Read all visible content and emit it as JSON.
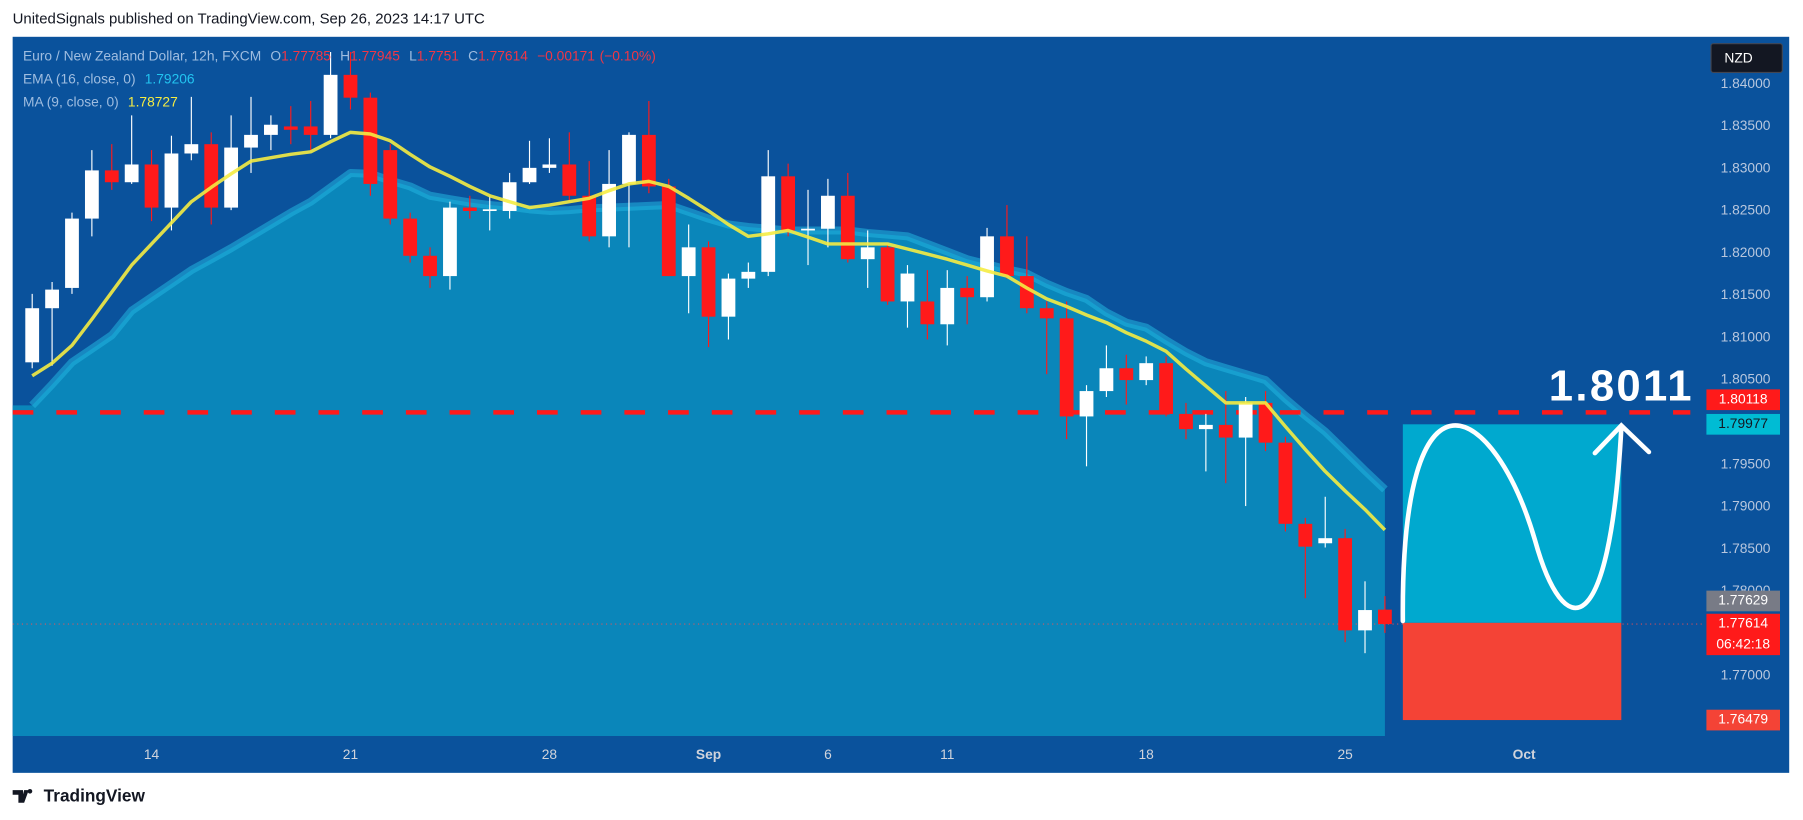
{
  "header": "UnitedSignals published on TradingView.com, Sep 26, 2023 14:17 UTC",
  "footer": "TradingView",
  "chart_data": {
    "type": "candlestick",
    "title": "Euro / New Zealand Dollar, 12h, FXCM",
    "currency": "NZD",
    "ohlc_labels": [
      "O",
      "H",
      "L",
      "C"
    ],
    "change": {
      "value": -0.00171,
      "label": "−0.00171"
    },
    "change_percent": {
      "value": -0.1,
      "label": "(−0.10%)"
    },
    "up_color": "#ffffff",
    "down_color": "#ff1a1a",
    "categories": [
      null,
      null,
      null,
      null,
      null,
      null,
      "14",
      null,
      null,
      null,
      null,
      null,
      null,
      null,
      null,
      null,
      "21",
      null,
      null,
      null,
      null,
      null,
      null,
      null,
      null,
      null,
      "28",
      null,
      null,
      null,
      null,
      null,
      null,
      null,
      "Sep",
      null,
      null,
      null,
      null,
      null,
      "6",
      null,
      null,
      null,
      null,
      null,
      "11",
      null,
      null,
      null,
      null,
      null,
      null,
      null,
      null,
      null,
      "18",
      null,
      null,
      null,
      null,
      null,
      null,
      null,
      null,
      null,
      "25",
      null,
      null,
      null,
      null,
      null,
      null,
      null,
      null,
      "Oct"
    ],
    "open": [
      1.8071,
      1.8135,
      1.8159,
      1.8241,
      1.8298,
      1.8284,
      1.8305,
      1.8254,
      1.8318,
      1.8329,
      1.8254,
      1.8325,
      1.834,
      1.835,
      1.835,
      1.834,
      1.8411,
      1.8384,
      1.8322,
      1.8241,
      1.8197,
      1.8173,
      1.8254,
      1.825,
      1.825,
      1.8284,
      1.8301,
      1.8305,
      1.8268,
      1.822,
      1.8282,
      1.834,
      1.8279,
      1.8173,
      1.8207,
      1.8125,
      1.817,
      1.8178,
      1.8291,
      1.8227,
      1.8229,
      1.8268,
      1.8193,
      1.8207,
      1.8143,
      1.8143,
      1.8116,
      1.8159,
      1.8148,
      1.822,
      1.8173,
      1.8135,
      1.8123,
      1.8007,
      1.8037,
      1.8064,
      1.805,
      1.807,
      1.801,
      1.7992,
      1.7997,
      1.7982,
      1.8023,
      1.7976,
      1.788,
      1.7857,
      1.7863,
      1.7754,
      1.77785,
      null,
      null,
      null,
      null,
      null,
      null,
      null
    ],
    "high": [
      1.8152,
      1.8166,
      1.8248,
      1.8322,
      1.8329,
      1.8363,
      1.8322,
      1.8339,
      1.8385,
      1.8343,
      1.8363,
      1.8385,
      1.8363,
      1.8374,
      1.838,
      1.8438,
      1.8438,
      1.839,
      1.8329,
      1.8248,
      1.8207,
      1.8261,
      1.8268,
      1.8268,
      1.8295,
      1.8333,
      1.8336,
      1.8343,
      1.8309,
      1.8322,
      1.8343,
      1.838,
      1.8288,
      1.8234,
      1.8214,
      1.8176,
      1.8189,
      1.8322,
      1.8306,
      1.8275,
      1.8288,
      1.8295,
      1.8227,
      1.8211,
      1.8186,
      1.818,
      1.818,
      1.8173,
      1.823,
      1.8257,
      1.822,
      1.8143,
      1.8143,
      1.8044,
      1.8091,
      1.808,
      1.8078,
      1.8078,
      1.8023,
      1.801,
      1.8037,
      1.803,
      1.8037,
      1.7983,
      1.7887,
      1.7912,
      1.7874,
      1.7812,
      1.77945,
      null,
      null,
      null,
      null,
      null,
      null,
      null
    ],
    "low": [
      1.8064,
      1.8067,
      1.8152,
      1.822,
      1.8275,
      1.8282,
      1.8238,
      1.8227,
      1.831,
      1.8234,
      1.8251,
      1.8295,
      1.8322,
      1.8329,
      1.8322,
      1.8336,
      1.837,
      1.8268,
      1.8234,
      1.8189,
      1.8159,
      1.8157,
      1.8241,
      1.8227,
      1.8241,
      1.8282,
      1.8295,
      1.8261,
      1.8214,
      1.8207,
      1.8207,
      1.8271,
      1.8173,
      1.8129,
      1.8089,
      1.8098,
      1.8159,
      1.8173,
      1.822,
      1.8186,
      1.8207,
      1.8189,
      1.8159,
      1.8139,
      1.8112,
      1.8098,
      1.8091,
      1.8116,
      1.8143,
      1.817,
      1.8129,
      1.8057,
      1.798,
      1.7948,
      1.803,
      1.8021,
      1.8044,
      1.8007,
      1.798,
      1.7942,
      1.7928,
      1.7901,
      1.7966,
      1.7871,
      1.7792,
      1.7852,
      1.774,
      1.7727,
      1.7751,
      null,
      null,
      null,
      null,
      null,
      null,
      null
    ],
    "close": [
      1.8135,
      1.8157,
      1.8241,
      1.8298,
      1.8284,
      1.8305,
      1.8254,
      1.8318,
      1.8329,
      1.8254,
      1.8325,
      1.834,
      1.8352,
      1.8346,
      1.834,
      1.8411,
      1.8384,
      1.8282,
      1.8241,
      1.8197,
      1.8173,
      1.8254,
      1.825,
      1.8252,
      1.8284,
      1.8301,
      1.8305,
      1.8268,
      1.822,
      1.8282,
      1.834,
      1.8279,
      1.8173,
      1.8207,
      1.8125,
      1.817,
      1.8178,
      1.8291,
      1.8227,
      1.8229,
      1.8268,
      1.8193,
      1.8207,
      1.8143,
      1.8176,
      1.8116,
      1.8159,
      1.8148,
      1.822,
      1.8173,
      1.8135,
      1.8123,
      1.8007,
      1.8037,
      1.8064,
      1.805,
      1.807,
      1.801,
      1.7992,
      1.7997,
      1.7982,
      1.8023,
      1.7976,
      1.788,
      1.7853,
      1.7863,
      1.7754,
      1.7778,
      1.77614,
      null,
      null,
      null,
      null,
      null,
      null,
      null
    ],
    "series": [
      {
        "name": "EMA (16, close, 0)",
        "color": "#22b5e0",
        "fill": "#0a86ba",
        "values": [
          1.802,
          1.8045,
          1.8071,
          1.8087,
          1.8103,
          1.8132,
          1.8148,
          1.8164,
          1.818,
          1.8193,
          1.8206,
          1.822,
          1.8234,
          1.8248,
          1.8261,
          1.8278,
          1.8295,
          1.8294,
          1.8286,
          1.8279,
          1.8268,
          1.8264,
          1.826,
          1.8257,
          1.8255,
          1.8252,
          1.825,
          1.8251,
          1.8253,
          1.8254,
          1.8255,
          1.8256,
          1.8257,
          1.8249,
          1.8241,
          1.8234,
          1.8231,
          1.8229,
          1.8227,
          1.8227,
          1.8227,
          1.8227,
          1.8224,
          1.8222,
          1.822,
          1.8211,
          1.8202,
          1.8193,
          1.8187,
          1.8181,
          1.8176,
          1.8164,
          1.8154,
          1.8146,
          1.813,
          1.8118,
          1.8112,
          1.8097,
          1.8083,
          1.8071,
          1.8064,
          1.8057,
          1.805,
          1.8028,
          1.8008,
          1.7989,
          1.7966,
          1.7943,
          1.79206,
          null,
          null,
          null,
          null,
          null,
          null,
          null
        ]
      },
      {
        "name": "MA (9, close, 0)",
        "color": "#f5ec42",
        "values": [
          1.8055,
          1.807,
          1.8091,
          1.8122,
          1.8154,
          1.8186,
          1.8211,
          1.8236,
          1.8261,
          1.8278,
          1.8294,
          1.8309,
          1.8313,
          1.8317,
          1.832,
          1.8332,
          1.8343,
          1.8341,
          1.8333,
          1.8317,
          1.8302,
          1.8291,
          1.8279,
          1.8268,
          1.8261,
          1.8254,
          1.8257,
          1.8261,
          1.8265,
          1.8274,
          1.8282,
          1.8285,
          1.8279,
          1.8265,
          1.825,
          1.8234,
          1.822,
          1.8223,
          1.8227,
          1.8219,
          1.8211,
          1.8211,
          1.8211,
          1.8211,
          1.8205,
          1.8199,
          1.8193,
          1.8186,
          1.8179,
          1.8173,
          1.8159,
          1.8146,
          1.8137,
          1.8127,
          1.8118,
          1.8106,
          1.8096,
          1.8084,
          1.8063,
          1.8043,
          1.8023,
          1.8023,
          1.8023,
          1.7995,
          1.7968,
          1.7942,
          1.7919,
          1.7897,
          1.78727,
          null,
          null,
          null,
          null,
          null,
          null,
          null
        ]
      }
    ],
    "ylim": [
      1.7629,
      1.8456
    ],
    "yticks": [
      {
        "value": 1.84,
        "label": "1.84000"
      },
      {
        "value": 1.835,
        "label": "1.83500"
      },
      {
        "value": 1.83,
        "label": "1.83000"
      },
      {
        "value": 1.825,
        "label": "1.82500"
      },
      {
        "value": 1.82,
        "label": "1.82000"
      },
      {
        "value": 1.815,
        "label": "1.81500"
      },
      {
        "value": 1.81,
        "label": "1.81000"
      },
      {
        "value": 1.805,
        "label": "1.80500"
      },
      {
        "value": 1.8,
        "label": "1.80000"
      },
      {
        "value": 1.795,
        "label": "1.79500"
      },
      {
        "value": 1.79,
        "label": "1.79000"
      },
      {
        "value": 1.785,
        "label": "1.78500"
      },
      {
        "value": 1.78,
        "label": "1.78000"
      },
      {
        "value": 1.775,
        "label": "1.77500"
      },
      {
        "value": 1.77,
        "label": "1.77000"
      }
    ],
    "horizontal_line": {
      "value": 1.80118,
      "color": "#ff1a1a"
    },
    "position": {
      "target": 1.79977,
      "entry": 1.77629,
      "stop": 1.76479,
      "target_color": "#00a9cf",
      "stop_color": "#f44336"
    },
    "countdown": "06:42:18",
    "annotation": "1.8011"
  }
}
